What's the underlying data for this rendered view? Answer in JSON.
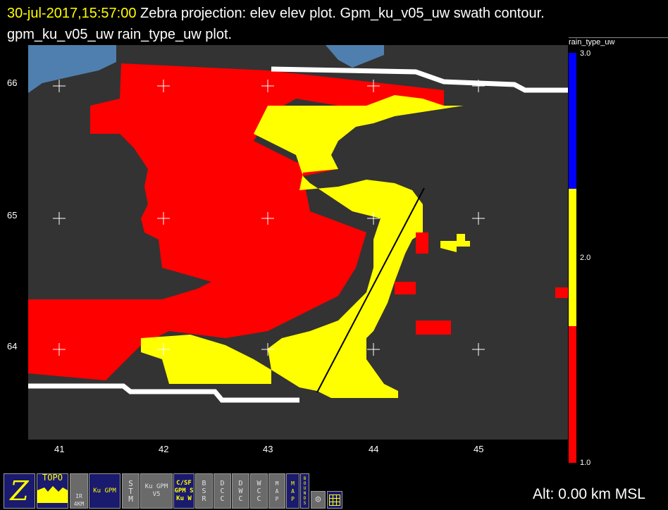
{
  "title": {
    "datetime": "30-jul-2017,15:57:00",
    "text": " Zebra projection: elev elev  plot.  Gpm_ku_v05_uw swath contour.  gpm_ku_v05_uw rain_type_uw  plot."
  },
  "plot": {
    "background": "#333333",
    "x_ticks": [
      "41",
      "42",
      "43",
      "44",
      "45"
    ],
    "y_ticks": [
      "66",
      "65",
      "64"
    ],
    "colors": {
      "stratiform": "#ff0000",
      "convective": "#ffff00",
      "other": "#0000ff",
      "land": "#4f7fae",
      "swath": "#ffffff"
    }
  },
  "colorbar": {
    "field": "rain_type_uw",
    "labels": [
      "3.0",
      "2.0",
      "1.0"
    ],
    "colors": [
      "#0000ff",
      "#ffff00",
      "#ff0000"
    ]
  },
  "toolbar": {
    "buttons": [
      {
        "name": "zebra",
        "label": "Z"
      },
      {
        "name": "topo",
        "label": "TOPO"
      },
      {
        "name": "ir-4km",
        "label": "IR 4KM"
      },
      {
        "name": "gpm-ku",
        "label": "Ku GPM"
      },
      {
        "name": "stm",
        "label": "STM"
      },
      {
        "name": "ku-v5",
        "label": "Ku GPM V5"
      },
      {
        "name": "csf-gpm",
        "label": "C/SF GPM S Ku W"
      },
      {
        "name": "bsr",
        "label": "BSR"
      },
      {
        "name": "dcc",
        "label": "DCC"
      },
      {
        "name": "dwc",
        "label": "DWC"
      },
      {
        "name": "wcc",
        "label": "WCC"
      },
      {
        "name": "map-gray",
        "label": "MAP"
      },
      {
        "name": "map-blue",
        "label": "MAP"
      },
      {
        "name": "bounds",
        "label": "BOUNDS"
      }
    ]
  },
  "status": {
    "altitude": "Alt: 0.00 km MSL"
  }
}
